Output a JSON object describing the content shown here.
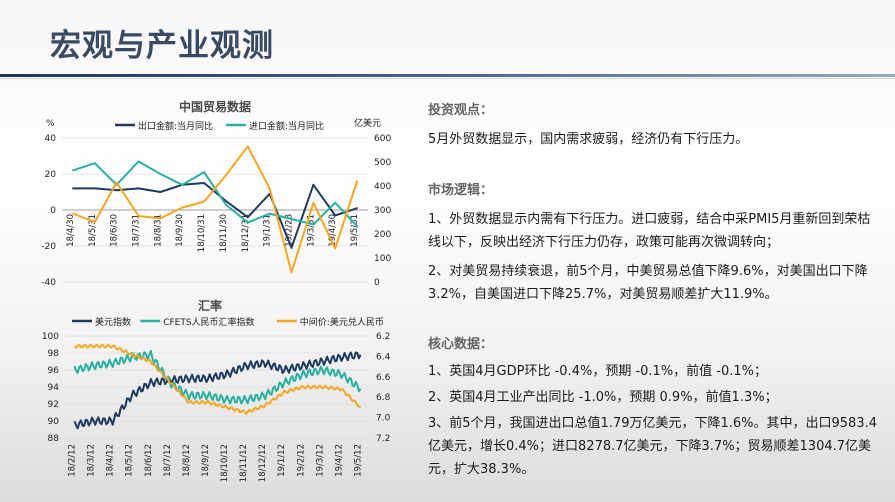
{
  "page": {
    "title": "宏观与产业观测"
  },
  "chart_data": [
    {
      "type": "line",
      "title": "中国贸易数据",
      "ylabel_left": "%",
      "ylabel_right": "亿美元",
      "ylim_left": [
        -40,
        40
      ],
      "ylim_right": [
        0,
        600
      ],
      "yticks_left": [
        "40",
        "20",
        "0",
        "-20",
        "-40"
      ],
      "yticks_right": [
        "600",
        "500",
        "400",
        "300",
        "200",
        "100",
        "0"
      ],
      "categories": [
        "18/4/30",
        "18/5/31",
        "18/6/30",
        "18/7/31",
        "18/8/31",
        "18/9/30",
        "18/10/31",
        "18/11/30",
        "18/12/31",
        "19/1/31",
        "19/2/28",
        "19/3/31",
        "19/4/30",
        "19/5/31"
      ],
      "series": [
        {
          "name": "出口金额:当月同比",
          "axis": "left",
          "color": "#1f3a5f",
          "values": [
            12.0,
            12.0,
            11.0,
            12.0,
            10.0,
            14.0,
            15.0,
            5.0,
            -4.0,
            9.0,
            -21.0,
            14.0,
            -3.0,
            1.0
          ]
        },
        {
          "name": "进口金额:当月同比",
          "axis": "left",
          "color": "#2ab0a0",
          "values": [
            22.0,
            26.0,
            14.0,
            27.0,
            20.0,
            14.0,
            21.0,
            3.0,
            -7.0,
            -2.0,
            -5.0,
            -8.0,
            4.0,
            -9.0
          ]
        },
        {
          "name": "",
          "axis": "right",
          "color": "#f5a623",
          "values": [
            285,
            250,
            415,
            275,
            265,
            310,
            335,
            445,
            565,
            390,
            40,
            330,
            140,
            420
          ]
        }
      ],
      "xlabel": ""
    },
    {
      "type": "line",
      "title": "汇率",
      "ylim_left": [
        88,
        100
      ],
      "ylim_right": [
        7.2,
        6.2
      ],
      "yticks_left": [
        "100",
        "98",
        "96",
        "94",
        "92",
        "90",
        "88"
      ],
      "yticks_right": [
        "6.2",
        "6.4",
        "6.6",
        "6.8",
        "7.0",
        "7.2"
      ],
      "categories": [
        "18/2/12",
        "18/3/12",
        "18/4/12",
        "18/5/12",
        "18/6/12",
        "18/7/12",
        "18/8/12",
        "18/9/12",
        "18/10/12",
        "18/11/12",
        "18/12/12",
        "19/1/12",
        "19/2/12",
        "19/3/12",
        "19/4/12",
        "19/5/12"
      ],
      "series": [
        {
          "name": "美元指数",
          "axis": "left",
          "color": "#1f3a5f",
          "values": [
            89.5,
            90.0,
            90.0,
            93.0,
            94.5,
            94.8,
            95.0,
            95.0,
            95.5,
            96.5,
            96.8,
            96.0,
            96.5,
            97.0,
            97.5,
            97.8
          ]
        },
        {
          "name": "CFETS人民币汇率指数",
          "axis": "left",
          "color": "#2ab0a0",
          "values": [
            96.0,
            96.5,
            96.8,
            97.5,
            97.8,
            94.5,
            93.0,
            93.0,
            92.5,
            92.5,
            93.0,
            94.5,
            95.5,
            96.0,
            95.5,
            93.8
          ]
        },
        {
          "name": "中间价:美元兑人民币",
          "axis": "right",
          "color": "#f5a623",
          "values": [
            6.3,
            6.3,
            6.3,
            6.38,
            6.45,
            6.65,
            6.85,
            6.85,
            6.9,
            6.95,
            6.88,
            6.75,
            6.7,
            6.7,
            6.72,
            6.9
          ]
        }
      ],
      "xlabel": ""
    }
  ],
  "right_panel": {
    "sections": [
      {
        "heading": "投资观点：",
        "paragraphs": [
          "5月外贸数据显示，国内需求疲弱，经济仍有下行压力。"
        ]
      },
      {
        "heading": "市场逻辑：",
        "paragraphs": [
          "1、外贸数据显示内需有下行压力。进口疲弱，结合中采PMI5月重新回到荣枯线以下，反映出经济下行压力仍存，政策可能再次微调转向；",
          "2、对美贸易持续衰退，前5个月，中美贸易总值下降9.6%，对美国出口下降3.2%，自美国进口下降25.7%，对美贸易顺差扩大11.9%。"
        ]
      },
      {
        "heading": "核心数据：",
        "paragraphs": [
          "1、英国4月GDP环比 -0.4%，预期 -0.1%，前值 -0.1%；",
          "2、英国4月工业产出同比 -1.0%，预期 0.9%，前值1.3%；",
          "3、前5个月，我国进出口总值1.79万亿美元，下降1.6%。其中，出口9583.4亿美元，增长0.4%；进口8278.7亿美元，下降3.7%；贸易顺差1304.7亿美元，扩大38.3%。"
        ]
      }
    ]
  }
}
